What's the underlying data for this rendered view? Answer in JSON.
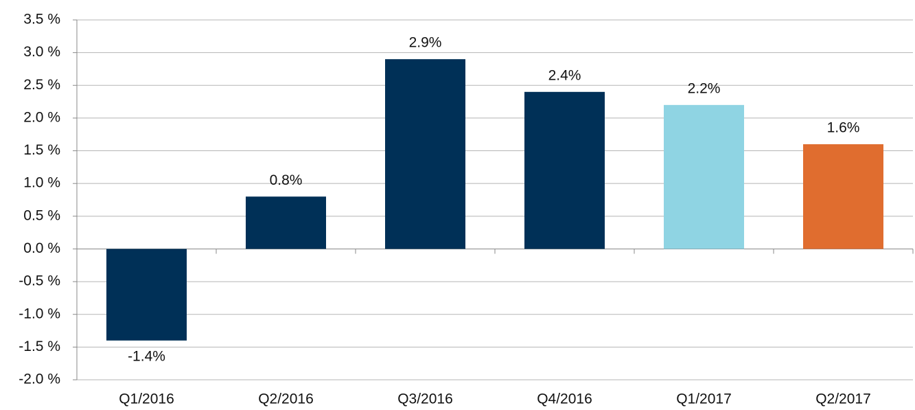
{
  "chart_data": {
    "type": "bar",
    "categories": [
      "Q1/2016",
      "Q2/2016",
      "Q3/2016",
      "Q4/2016",
      "Q1/2017",
      "Q2/2017"
    ],
    "values": [
      -1.4,
      0.8,
      2.9,
      2.4,
      2.2,
      1.6
    ],
    "value_labels": [
      "-1.4%",
      "0.8%",
      "2.9%",
      "2.4%",
      "2.2%",
      "1.6%"
    ],
    "colors": [
      "#003057",
      "#003057",
      "#003057",
      "#003057",
      "#8fd4e3",
      "#e06d2f"
    ],
    "ylim": [
      -2.0,
      3.5
    ],
    "yticks": [
      {
        "value": -2.0,
        "label": "-2.0 %"
      },
      {
        "value": -1.5,
        "label": "-1.5 %"
      },
      {
        "value": -1.0,
        "label": "-1.0 %"
      },
      {
        "value": -0.5,
        "label": "-0.5 %"
      },
      {
        "value": 0.0,
        "label": "0.0 %"
      },
      {
        "value": 0.5,
        "label": "0.5 %"
      },
      {
        "value": 1.0,
        "label": "1.0 %"
      },
      {
        "value": 1.5,
        "label": "1.5 %"
      },
      {
        "value": 2.0,
        "label": "2.0 %"
      },
      {
        "value": 2.5,
        "label": "2.5 %"
      },
      {
        "value": 3.0,
        "label": "3.0 %"
      },
      {
        "value": 3.5,
        "label": "3.5 %"
      }
    ],
    "grid": true
  }
}
